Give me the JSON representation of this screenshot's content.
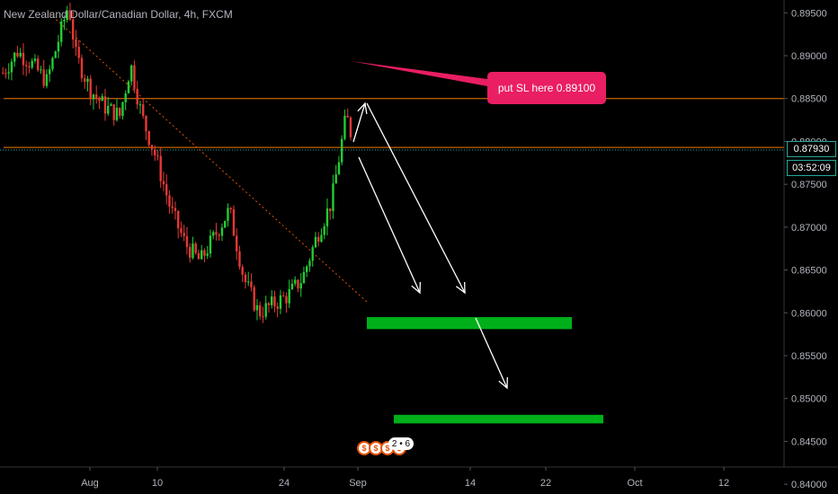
{
  "header": {
    "title": "New Zealand Dollar/Canadian Dollar, 4h, FXCM"
  },
  "annotation": {
    "text": "put SL here 0.89100"
  },
  "price_axis": {
    "last_price": "0.87930",
    "countdown": "03:52:09"
  },
  "events": {
    "count": "2 • 6"
  },
  "colors": {
    "up": "#26a69a",
    "down": "#ef5350",
    "bull_candle": "#22cc33",
    "bear_candle": "#e53935",
    "hline": "#f57c00",
    "target_zone": "#00b01a",
    "annotation": "#e91e63"
  },
  "chart_data": {
    "type": "candlestick",
    "title": "New Zealand Dollar/Canadian Dollar, 4h, FXCM",
    "ylim": [
      0.8397,
      0.8965
    ],
    "yticks": [
      "0.89500",
      "0.89000",
      "0.88500",
      "0.88000",
      "0.87500",
      "0.87000",
      "0.86500",
      "0.86000",
      "0.85500",
      "0.85000",
      "0.84500",
      "0.84000"
    ],
    "xticks": [
      "Aug",
      "10",
      "24",
      "Sep",
      "14",
      "22",
      "Oct",
      "12"
    ],
    "horizontal_lines": [
      {
        "price": 0.885,
        "color": "#f57c00"
      },
      {
        "price": 0.8793,
        "color": "#f57c00"
      }
    ],
    "target_zones": [
      {
        "low": 0.8581,
        "high": 0.8595
      },
      {
        "low": 0.8471,
        "high": 0.8481
      }
    ],
    "path_points": [
      [
        0.0,
        0.888
      ],
      [
        0.02,
        0.8905
      ],
      [
        0.04,
        0.889
      ],
      [
        0.06,
        0.887
      ],
      [
        0.08,
        0.893
      ],
      [
        0.09,
        0.896
      ],
      [
        0.1,
        0.89
      ],
      [
        0.12,
        0.886
      ],
      [
        0.14,
        0.884
      ],
      [
        0.16,
        0.883
      ],
      [
        0.175,
        0.889
      ],
      [
        0.19,
        0.883
      ],
      [
        0.21,
        0.878
      ],
      [
        0.23,
        0.872
      ],
      [
        0.25,
        0.868
      ],
      [
        0.27,
        0.866
      ],
      [
        0.29,
        0.869
      ],
      [
        0.31,
        0.872
      ],
      [
        0.33,
        0.864
      ],
      [
        0.35,
        0.86
      ],
      [
        0.37,
        0.861
      ],
      [
        0.39,
        0.862
      ],
      [
        0.41,
        0.864
      ],
      [
        0.43,
        0.869
      ],
      [
        0.45,
        0.873
      ],
      [
        0.47,
        0.883
      ],
      [
        0.475,
        0.8815
      ],
      [
        0.48,
        0.8793
      ]
    ]
  }
}
